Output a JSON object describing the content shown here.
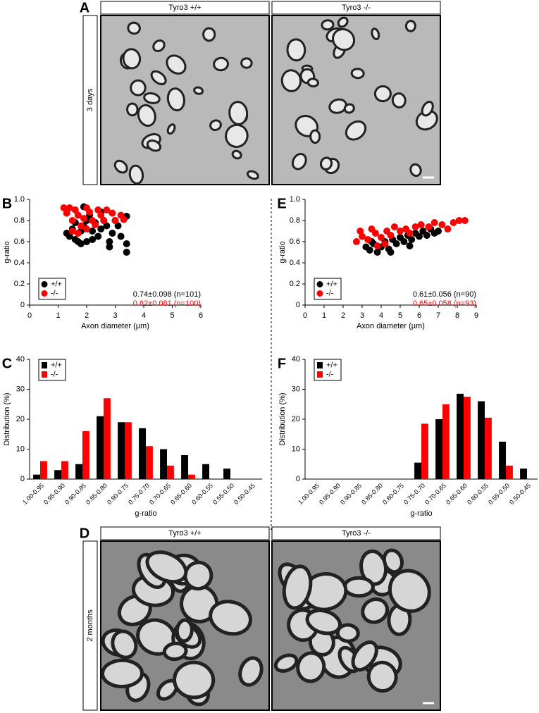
{
  "micrographs": [
    {
      "letter": "A",
      "time": "3 days",
      "headers": [
        "Tyro3 +/+",
        "Tyro3 -/-"
      ]
    },
    {
      "letter": "D",
      "time": "2 months",
      "headers": [
        "Tyro3 +/+",
        "Tyro3 -/-"
      ]
    }
  ],
  "chart_data": [
    {
      "panel": "B",
      "type": "scatter",
      "xlabel": "Axon diameter (µm)",
      "ylabel": "g-ratio",
      "xlim": [
        0,
        6
      ],
      "xticks": [
        0,
        1,
        2,
        3,
        4,
        5,
        6
      ],
      "ylim": [
        0,
        1
      ],
      "yticks": [
        0,
        0.2,
        0.4,
        0.6,
        0.8,
        {
          "value": 1,
          "label": "1.0"
        }
      ],
      "legend": "lower left",
      "series": [
        {
          "name": "+/+",
          "color": "#000000",
          "x": [
            1.3,
            1.4,
            1.5,
            1.6,
            1.7,
            1.8,
            1.9,
            2.0,
            2.0,
            2.1,
            2.2,
            2.3,
            2.4,
            2.5,
            2.6,
            2.7,
            2.8,
            2.8,
            2.9,
            3.0,
            3.1,
            3.2,
            3.4,
            3.4,
            3.4,
            1.9,
            2.5,
            1.6,
            2.2,
            1.8
          ],
          "y": [
            0.68,
            0.65,
            0.72,
            0.62,
            0.6,
            0.7,
            0.75,
            0.6,
            0.8,
            0.85,
            0.7,
            0.78,
            0.65,
            0.72,
            0.8,
            0.75,
            0.6,
            0.55,
            0.68,
            0.8,
            0.75,
            0.65,
            0.58,
            0.5,
            0.84,
            0.93,
            0.88,
            0.78,
            0.62,
            0.58
          ]
        },
        {
          "name": "-/-",
          "color": "#ff0000",
          "x": [
            1.2,
            1.3,
            1.4,
            1.5,
            1.6,
            1.7,
            1.8,
            1.9,
            2.0,
            2.1,
            2.2,
            2.3,
            2.4,
            2.5,
            2.6,
            2.7,
            2.9,
            3.0,
            3.2,
            3.3,
            1.5,
            2.0,
            1.7
          ],
          "y": [
            0.92,
            0.87,
            0.92,
            0.8,
            0.9,
            0.85,
            0.75,
            0.82,
            0.92,
            0.88,
            0.8,
            0.76,
            0.9,
            0.85,
            0.8,
            0.9,
            0.87,
            0.8,
            0.85,
            0.81,
            0.7,
            0.72,
            0.68
          ]
        }
      ],
      "annotations": [
        {
          "text": "0.74±0.098 (n=101)",
          "color": "#000000"
        },
        {
          "text": "0.82±0.081 (n=100)",
          "color": "#ff0000"
        }
      ]
    },
    {
      "panel": "E",
      "type": "scatter",
      "xlabel": "Axon diameter (µm)",
      "ylabel": "g-ratio",
      "xlim": [
        0,
        9
      ],
      "xticks": [
        0,
        1,
        2,
        3,
        4,
        5,
        6,
        7,
        8,
        9
      ],
      "ylim": [
        0,
        1
      ],
      "yticks": [
        0,
        0.2,
        0.4,
        0.6,
        0.8,
        {
          "value": 1,
          "label": "1.0"
        }
      ],
      "legend": "lower left",
      "series": [
        {
          "name": "+/+",
          "color": "#000000",
          "x": [
            3.2,
            3.4,
            3.6,
            3.8,
            4.0,
            4.2,
            4.4,
            4.6,
            4.8,
            5.0,
            5.2,
            5.4,
            5.6,
            5.8,
            6.0,
            6.2,
            6.4,
            6.6,
            6.8,
            7.0,
            4.5,
            5.5,
            3.5
          ],
          "y": [
            0.55,
            0.52,
            0.58,
            0.5,
            0.55,
            0.6,
            0.53,
            0.62,
            0.58,
            0.64,
            0.6,
            0.66,
            0.62,
            0.68,
            0.65,
            0.7,
            0.66,
            0.72,
            0.68,
            0.7,
            0.5,
            0.56,
            0.6
          ]
        },
        {
          "name": "-/-",
          "color": "#ff0000",
          "x": [
            2.7,
            2.9,
            3.0,
            3.3,
            3.5,
            3.7,
            4.0,
            4.3,
            4.5,
            4.7,
            5.0,
            5.3,
            5.5,
            5.8,
            6.1,
            6.5,
            6.8,
            7.2,
            7.5,
            7.8,
            8.1,
            8.4,
            4.2,
            3.8
          ],
          "y": [
            0.6,
            0.7,
            0.65,
            0.62,
            0.72,
            0.68,
            0.64,
            0.7,
            0.66,
            0.74,
            0.7,
            0.72,
            0.68,
            0.74,
            0.76,
            0.74,
            0.78,
            0.76,
            0.72,
            0.78,
            0.8,
            0.8,
            0.58,
            0.56
          ]
        }
      ],
      "annotations": [
        {
          "text": "0.61±0.056 (n=90)",
          "color": "#000000"
        },
        {
          "text": "0.65±0.058 (n=93)",
          "color": "#ff0000"
        }
      ]
    },
    {
      "panel": "C",
      "type": "bar",
      "xlabel": "g-ratio",
      "ylabel": "Distribution (%)",
      "categories": [
        "1.00-0.95",
        "0.95-0.90",
        "0.90-0.85",
        "0.85-0.80",
        "0.80-0.75",
        "0.75-0.70",
        "0.70-0.65",
        "0.65-0.60",
        "0.60-0.55",
        "0.55-0.50",
        "0.50-0.45"
      ],
      "ylim": [
        0,
        40
      ],
      "yticks": [
        0,
        10,
        20,
        30,
        40
      ],
      "legend": "upper left",
      "series": [
        {
          "name": "+/+",
          "color": "#000000",
          "values": [
            1.5,
            3,
            5,
            21,
            19,
            17,
            10,
            8,
            5,
            3.5,
            0
          ]
        },
        {
          "name": "-/-",
          "color": "#ff0000",
          "values": [
            6,
            6,
            16,
            27,
            19,
            11,
            4.5,
            1.5,
            0,
            0,
            0
          ]
        }
      ]
    },
    {
      "panel": "F",
      "type": "bar",
      "xlabel": "g-ratio",
      "ylabel": "Distribution (%)",
      "categories": [
        "1.00-0.95",
        "0.95-0.90",
        "0.90-0.85",
        "0.85-0.80",
        "0.80-0.75",
        "0.75-0.70",
        "0.70-0.65",
        "0.65-0.60",
        "0.60-0.55",
        "0.55-0.50",
        "0.50-0.45"
      ],
      "ylim": [
        0,
        40
      ],
      "yticks": [
        0,
        10,
        20,
        30,
        40
      ],
      "legend": "upper left",
      "series": [
        {
          "name": "+/+",
          "color": "#000000",
          "values": [
            0,
            0,
            0,
            0,
            0,
            5.5,
            20,
            28.5,
            26,
            12.5,
            3.5
          ]
        },
        {
          "name": "-/-",
          "color": "#ff0000",
          "values": [
            0,
            0,
            0,
            0,
            0,
            18.5,
            25,
            27.5,
            20.5,
            4.5,
            0
          ]
        }
      ]
    }
  ]
}
